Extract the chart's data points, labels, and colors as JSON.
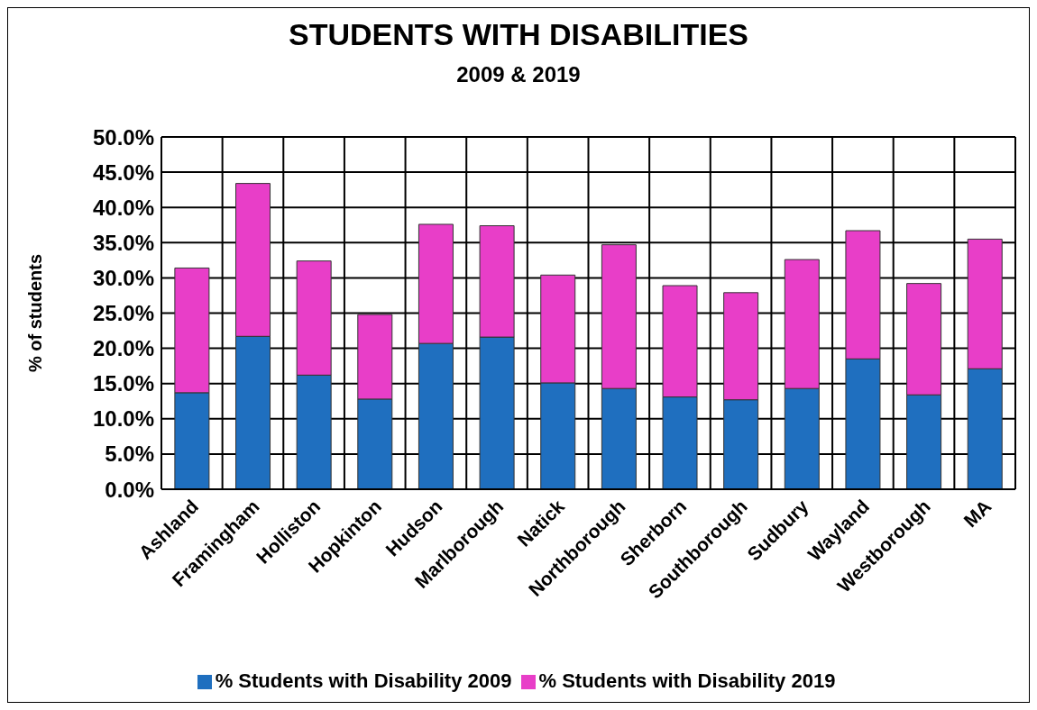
{
  "chart_data": {
    "type": "bar",
    "title": "STUDENTS WITH DISABILITIES",
    "subtitle": "2009 & 2019",
    "ylabel": "%  of students",
    "categories": [
      "Ashland",
      "Framingham",
      "Holliston",
      "Hopkinton",
      "Hudson",
      "Marlborough",
      "Natick",
      "Northborough",
      "Sherborn",
      "Southborough",
      "Sudbury",
      "Wayland",
      "Westborough",
      "MA"
    ],
    "stacked": true,
    "series": [
      {
        "name": "% Students with Disability 2009",
        "color": "#1f6fbf",
        "values": [
          13.7,
          21.7,
          16.2,
          12.8,
          20.7,
          21.6,
          15.1,
          14.3,
          13.1,
          12.7,
          14.3,
          18.5,
          13.4,
          17.1
        ]
      },
      {
        "name": "% Students with Disability 2019",
        "color": "#e83ec8",
        "values": [
          17.7,
          21.7,
          16.2,
          12.0,
          16.9,
          15.8,
          15.3,
          20.4,
          15.8,
          15.2,
          18.3,
          18.2,
          15.8,
          18.4
        ]
      }
    ],
    "ylim": [
      0,
      50
    ],
    "yticks": [
      {
        "value": 0,
        "label": "0.0%"
      },
      {
        "value": 5,
        "label": "5.0%"
      },
      {
        "value": 10,
        "label": "10.0%"
      },
      {
        "value": 15,
        "label": "15.0%"
      },
      {
        "value": 20,
        "label": "20.0%"
      },
      {
        "value": 25,
        "label": "25.0%"
      },
      {
        "value": 30,
        "label": "30.0%"
      },
      {
        "value": 35,
        "label": "35.0%"
      },
      {
        "value": 40,
        "label": "40.0%"
      },
      {
        "value": 45,
        "label": "45.0%"
      },
      {
        "value": 50,
        "label": "50.0%"
      }
    ],
    "grid": true,
    "legend": "bottom"
  }
}
